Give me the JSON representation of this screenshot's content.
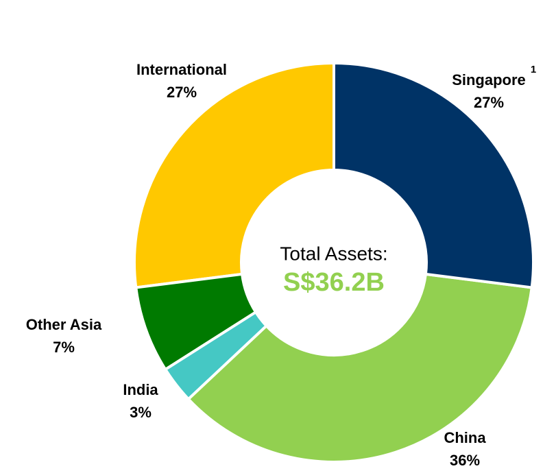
{
  "chart_data": {
    "type": "donut",
    "categories": [
      "Singapore",
      "China",
      "India",
      "Other Asia",
      "International"
    ],
    "values": [
      27,
      36,
      3,
      7,
      27
    ],
    "value_labels": [
      "27%",
      "36%",
      "3%",
      "7%",
      "27%"
    ],
    "colors": [
      "#003366",
      "#92d050",
      "#45c8c4",
      "#007a00",
      "#ffc800"
    ],
    "footnote_marker": "1",
    "center_label": "Total Assets:",
    "center_value": "S$36.2B",
    "center_value_color": "#92d050"
  }
}
